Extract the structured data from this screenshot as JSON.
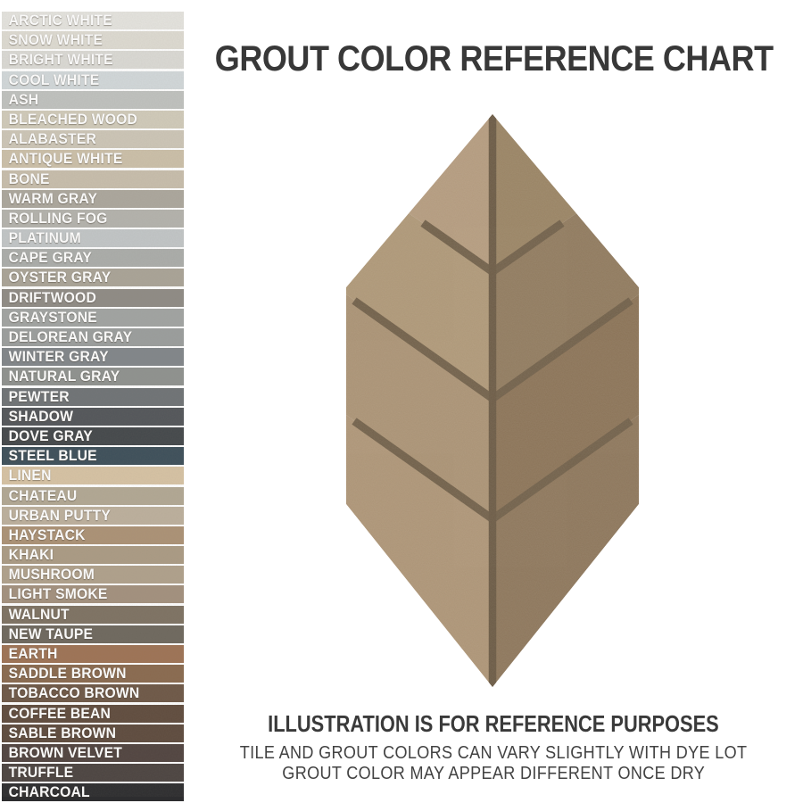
{
  "page": {
    "title": "GROUT COLOR REFERENCE CHART"
  },
  "swatches": [
    {
      "name": "ARCTIC WHITE",
      "color": "#e5e4df"
    },
    {
      "name": "SNOW WHITE",
      "color": "#dedbd2"
    },
    {
      "name": "BRIGHT WHITE",
      "color": "#dbdad5"
    },
    {
      "name": "COOL WHITE",
      "color": "#d2d8da"
    },
    {
      "name": "ASH",
      "color": "#c0c2bf"
    },
    {
      "name": "BLEACHED WOOD",
      "color": "#d1cbba"
    },
    {
      "name": "ALABASTER",
      "color": "#cdc6b7"
    },
    {
      "name": "ANTIQUE WHITE",
      "color": "#ccc0a9"
    },
    {
      "name": "BONE",
      "color": "#c8beac"
    },
    {
      "name": "WARM GRAY",
      "color": "#aca79d"
    },
    {
      "name": "ROLLING FOG",
      "color": "#b4b3ad"
    },
    {
      "name": "PLATINUM",
      "color": "#c2c6c7"
    },
    {
      "name": "CAPE GRAY",
      "color": "#abadaa"
    },
    {
      "name": "OYSTER GRAY",
      "color": "#aaa497"
    },
    {
      "name": "DRIFTWOOD",
      "color": "#8f8b85"
    },
    {
      "name": "GRAYSTONE",
      "color": "#a1a4a2"
    },
    {
      "name": "DELOREAN GRAY",
      "color": "#9b9e9d"
    },
    {
      "name": "WINTER GRAY",
      "color": "#81868a"
    },
    {
      "name": "NATURAL GRAY",
      "color": "#8f928f"
    },
    {
      "name": "PEWTER",
      "color": "#6f7376"
    },
    {
      "name": "SHADOW",
      "color": "#53565a"
    },
    {
      "name": "DOVE GRAY",
      "color": "#44484b"
    },
    {
      "name": "STEEL BLUE",
      "color": "#3d4f5a"
    },
    {
      "name": "LINEN",
      "color": "#d7c3a4"
    },
    {
      "name": "CHATEAU",
      "color": "#b2a894"
    },
    {
      "name": "URBAN PUTTY",
      "color": "#bdb09d"
    },
    {
      "name": "HAYSTACK",
      "color": "#ac9276"
    },
    {
      "name": "KHAKI",
      "color": "#ab9b84"
    },
    {
      "name": "MUSHROOM",
      "color": "#b0a18c"
    },
    {
      "name": "LIGHT SMOKE",
      "color": "#a3917e"
    },
    {
      "name": "WALNUT",
      "color": "#7e7263"
    },
    {
      "name": "NEW TAUPE",
      "color": "#6e685e"
    },
    {
      "name": "EARTH",
      "color": "#9e7355"
    },
    {
      "name": "SADDLE BROWN",
      "color": "#8a6a4f"
    },
    {
      "name": "TOBACCO BROWN",
      "color": "#6e5847"
    },
    {
      "name": "COFFEE BEAN",
      "color": "#604c3e"
    },
    {
      "name": "SABLE BROWN",
      "color": "#5e4b3e"
    },
    {
      "name": "BROWN VELVET",
      "color": "#514440"
    },
    {
      "name": "TRUFFLE",
      "color": "#4c4441"
    },
    {
      "name": "CHARCOAL",
      "color": "#2d2d2f"
    }
  ],
  "illustration": {
    "grout_color": "#6f5e48",
    "center_grout_color": "#695843",
    "pieces": {
      "left": [
        "#b69d80",
        "#b09979",
        "#ab9375",
        "#af9678"
      ],
      "right": [
        "#9a8464",
        "#907a5e",
        "#8a7256",
        "#8d765b"
      ]
    }
  },
  "disclaimer": {
    "heading": "ILLUSTRATION IS FOR REFERENCE PURPOSES",
    "line1": "TILE AND GROUT COLORS CAN VARY SLIGHTLY WITH DYE LOT",
    "line2": "GROUT COLOR MAY APPEAR DIFFERENT ONCE DRY"
  }
}
